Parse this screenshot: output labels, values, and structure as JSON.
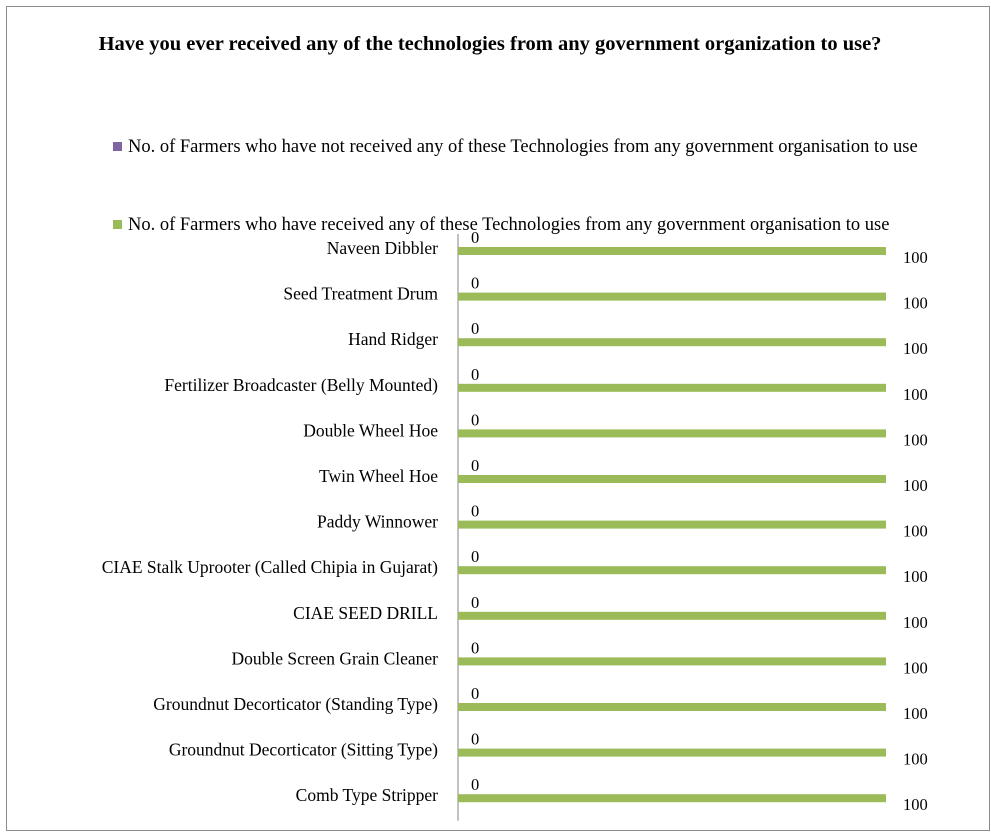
{
  "chart_data": {
    "type": "bar",
    "orientation": "horizontal",
    "title": "Have you ever received any of the technologies from any government organization to use?",
    "categories": [
      "Naveen Dibbler",
      "Seed Treatment Drum",
      "Hand Ridger",
      "Fertilizer Broadcaster (Belly Mounted)",
      "Double Wheel Hoe",
      "Twin Wheel Hoe",
      "Paddy Winnower",
      "CIAE Stalk Uprooter (Called Chipia in Gujarat)",
      "CIAE SEED DRILL",
      "Double Screen Grain Cleaner",
      "Groundnut Decorticator (Standing Type)",
      "Groundnut Decorticator (Sitting Type)",
      "Comb Type Stripper"
    ],
    "series": [
      {
        "name": "No. of Farmers who have not received any of these Technologies from any government organisation to use",
        "color": "#8064a2",
        "values": [
          0,
          0,
          0,
          0,
          0,
          0,
          0,
          0,
          0,
          0,
          0,
          0,
          0
        ],
        "labels": [
          "0",
          "0",
          "0",
          "0",
          "0",
          "0",
          "0",
          "0",
          "0",
          "0",
          "0",
          "0",
          "0"
        ]
      },
      {
        "name": "No. of Farmers who have received any of these Technologies from any government organisation to use",
        "color": "#9bbb59",
        "values": [
          100,
          100,
          100,
          100,
          100,
          100,
          100,
          100,
          100,
          100,
          100,
          100,
          100
        ],
        "labels": [
          "100",
          "100",
          "100",
          "100",
          "100",
          "100",
          "100",
          "100",
          "100",
          "100",
          "100",
          "100",
          "100"
        ]
      }
    ],
    "xlim": [
      0,
      100
    ],
    "xlabel": "",
    "ylabel": "",
    "grid": false,
    "legend_position": "top"
  }
}
